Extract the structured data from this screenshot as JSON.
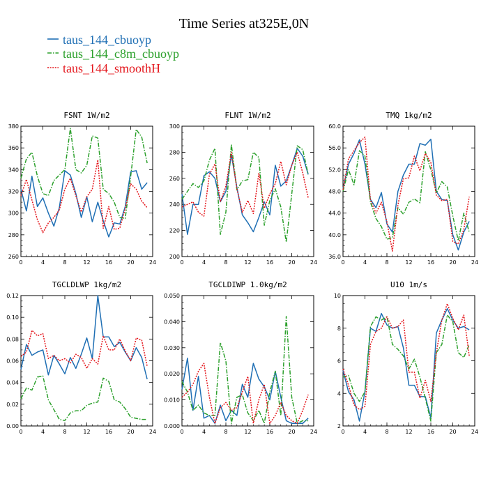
{
  "figure": {
    "title": "Time Series at325E,0N"
  },
  "legend": [
    {
      "label": "taus_144_cbuoyp",
      "color": "#1f6fb4",
      "dash": "solid"
    },
    {
      "label": "taus_144_c8m_cbuoyp",
      "color": "#2ca02c",
      "dash": "dashdot"
    },
    {
      "label": "taus_144_smoothH",
      "color": "#e4161c",
      "dash": "dotted"
    }
  ],
  "chart_data": [
    {
      "type": "line",
      "title": "FSNT   1W/m2",
      "xlim": [
        0,
        24
      ],
      "xticks": [
        "0",
        "4",
        "8",
        "12",
        "16",
        "20",
        "24"
      ],
      "ylim": [
        260,
        380
      ],
      "yticks": [
        "260",
        "280",
        "300",
        "320",
        "340",
        "360",
        "380"
      ],
      "x": [
        0,
        1,
        2,
        3,
        4,
        5,
        6,
        7,
        8,
        9,
        10,
        11,
        12,
        13,
        14,
        15,
        16,
        17,
        18,
        19,
        20,
        21,
        22,
        23
      ],
      "series": [
        {
          "name": "taus_144_cbuoyp",
          "values": [
            322,
            302,
            334,
            306,
            314,
            300,
            288,
            305,
            339,
            335,
            318,
            296,
            315,
            292,
            310,
            293,
            278,
            291,
            290,
            306,
            338,
            339,
            322,
            328
          ]
        },
        {
          "name": "taus_144_c8m_cbuoyp",
          "values": [
            332,
            350,
            356,
            334,
            318,
            316,
            330,
            335,
            340,
            378,
            340,
            337,
            344,
            371,
            369,
            322,
            318,
            310,
            296,
            295,
            334,
            377,
            370,
            346
          ]
        },
        {
          "name": "taus_144_smoothH",
          "values": [
            316,
            331,
            312,
            294,
            282,
            291,
            296,
            303,
            322,
            332,
            316,
            301,
            315,
            322,
            349,
            286,
            306,
            285,
            286,
            304,
            327,
            322,
            311,
            305
          ]
        }
      ]
    },
    {
      "type": "line",
      "title": "FLNT   1W/m2",
      "xlim": [
        0,
        24
      ],
      "xticks": [
        "0",
        "4",
        "8",
        "12",
        "16",
        "20",
        "24"
      ],
      "ylim": [
        200,
        300
      ],
      "yticks": [
        "200",
        "220",
        "240",
        "260",
        "280",
        "300"
      ],
      "x": [
        0,
        1,
        2,
        3,
        4,
        5,
        6,
        7,
        8,
        9,
        10,
        11,
        12,
        13,
        14,
        15,
        16,
        17,
        18,
        19,
        20,
        21,
        22,
        23
      ],
      "series": [
        {
          "name": "taus_144_cbuoyp",
          "values": [
            248,
            217,
            240,
            240,
            262,
            265,
            260,
            242,
            250,
            278,
            253,
            232,
            226,
            219,
            230,
            242,
            232,
            270,
            254,
            258,
            270,
            283,
            277,
            263
          ]
        },
        {
          "name": "taus_144_c8m_cbuoyp",
          "values": [
            244,
            250,
            256,
            253,
            258,
            274,
            283,
            217,
            234,
            286,
            251,
            258,
            259,
            280,
            276,
            224,
            243,
            252,
            238,
            211,
            248,
            285,
            282,
            263
          ]
        },
        {
          "name": "taus_144_smoothH",
          "values": [
            238,
            240,
            242,
            234,
            231,
            263,
            271,
            242,
            254,
            280,
            252,
            234,
            243,
            233,
            264,
            237,
            248,
            256,
            273,
            255,
            270,
            280,
            264,
            245
          ]
        }
      ]
    },
    {
      "type": "line",
      "title": "TMQ   1kg/m2",
      "xlim": [
        0,
        24
      ],
      "xticks": [
        "0",
        "4",
        "8",
        "12",
        "16",
        "20",
        "24"
      ],
      "ylim": [
        36,
        60
      ],
      "yticks": [
        "36.0",
        "40.0",
        "44.0",
        "48.0",
        "52.0",
        "56.0",
        "60.0"
      ],
      "x": [
        0,
        1,
        2,
        3,
        4,
        5,
        6,
        7,
        8,
        9,
        10,
        11,
        12,
        13,
        14,
        15,
        16,
        17,
        18,
        19,
        20,
        21,
        22,
        23
      ],
      "series": [
        {
          "name": "taus_144_cbuoyp",
          "values": [
            48.5,
            53,
            55,
            57.5,
            53,
            46.5,
            45,
            47.8,
            42,
            40.5,
            48,
            51,
            53,
            53,
            56.8,
            56.5,
            57.6,
            48,
            46.5,
            46.3,
            40,
            37.2,
            40.5,
            42.5
          ]
        },
        {
          "name": "taus_144_c8m_cbuoyp",
          "values": [
            48,
            52,
            49.2,
            55.5,
            54.5,
            46,
            43,
            41.5,
            39.2,
            39.5,
            45,
            43.8,
            46,
            46.6,
            45.9,
            55.3,
            52,
            47.7,
            49.8,
            48.8,
            43.5,
            38.9,
            44,
            40.5
          ]
        },
        {
          "name": "taus_144_smoothH",
          "values": [
            48.3,
            54,
            55.5,
            57,
            58,
            46.4,
            44,
            46,
            42.4,
            37,
            45.5,
            50.3,
            50.5,
            54.5,
            51.8,
            55,
            53.3,
            47.3,
            46.3,
            46.5,
            38.8,
            38.3,
            41,
            47
          ]
        }
      ]
    },
    {
      "type": "line",
      "title": "TGCLDLWP   1kg/m2",
      "xlim": [
        0,
        24
      ],
      "xticks": [
        "0",
        "4",
        "8",
        "12",
        "16",
        "20",
        "24"
      ],
      "ylim": [
        0,
        0.12
      ],
      "yticks": [
        "0.00",
        "0.02",
        "0.04",
        "0.06",
        "0.08",
        "0.10",
        "0.12"
      ],
      "x": [
        0,
        1,
        2,
        3,
        4,
        5,
        6,
        7,
        8,
        9,
        10,
        11,
        12,
        13,
        14,
        15,
        16,
        17,
        18,
        19,
        20,
        21,
        22,
        23
      ],
      "series": [
        {
          "name": "taus_144_cbuoyp",
          "values": [
            0.052,
            0.075,
            0.065,
            0.068,
            0.07,
            0.047,
            0.065,
            0.057,
            0.048,
            0.063,
            0.053,
            0.066,
            0.081,
            0.062,
            0.12,
            0.082,
            0.082,
            0.073,
            0.077,
            0.068,
            0.06,
            0.072,
            0.063,
            0.043
          ]
        },
        {
          "name": "taus_144_c8m_cbuoyp",
          "values": [
            0.025,
            0.035,
            0.033,
            0.045,
            0.046,
            0.024,
            0.015,
            0.006,
            0.005,
            0.012,
            0.014,
            0.014,
            0.019,
            0.021,
            0.022,
            0.044,
            0.041,
            0.024,
            0.022,
            0.016,
            0.008,
            0.007,
            0.006,
            0.006
          ]
        },
        {
          "name": "taus_144_smoothH",
          "values": [
            0.064,
            0.068,
            0.088,
            0.083,
            0.085,
            0.062,
            0.065,
            0.06,
            0.062,
            0.058,
            0.066,
            0.063,
            0.053,
            0.062,
            0.057,
            0.083,
            0.07,
            0.07,
            0.08,
            0.069,
            0.06,
            0.081,
            0.079,
            0.055
          ]
        }
      ]
    },
    {
      "type": "line",
      "title": "TGCLDIWP   1.0kg/m2",
      "xlim": [
        0,
        24
      ],
      "xticks": [
        "0",
        "4",
        "8",
        "12",
        "16",
        "20",
        "24"
      ],
      "ylim": [
        0,
        0.05
      ],
      "yticks": [
        "0.000",
        "0.010",
        "0.020",
        "0.030",
        "0.040",
        "0.050"
      ],
      "x": [
        0,
        1,
        2,
        3,
        4,
        5,
        6,
        7,
        8,
        9,
        10,
        11,
        12,
        13,
        14,
        15,
        16,
        17,
        18,
        19,
        20,
        21,
        22,
        23
      ],
      "series": [
        {
          "name": "taus_144_cbuoyp",
          "values": [
            0.014,
            0.026,
            0.006,
            0.019,
            0.003,
            0.004,
            0.001,
            0.008,
            0.002,
            0.006,
            0.004,
            0.016,
            0.011,
            0.024,
            0.018,
            0.015,
            0.01,
            0.021,
            0.011,
            0.002,
            0.001,
            0.001,
            0.001,
            0.003
          ]
        },
        {
          "name": "taus_144_c8m_cbuoyp",
          "values": [
            0.017,
            0.013,
            0.006,
            0.008,
            0.005,
            0.004,
            0.004,
            0.032,
            0.025,
            0.001,
            0.011,
            0.012,
            0.005,
            0.002,
            0.006,
            0.001,
            0.013,
            0.021,
            0.004,
            0.042,
            0.011,
            0.001,
            0.002,
            0.002
          ]
        },
        {
          "name": "taus_144_smoothH",
          "values": [
            0.011,
            0.013,
            0.016,
            0.021,
            0.024,
            0.011,
            0.001,
            0.007,
            0.009,
            0.006,
            0.007,
            0.013,
            0.019,
            0.001,
            0.01,
            0.016,
            0.001,
            0.004,
            0.009,
            0.004,
            0.002,
            0.001,
            0.006,
            0.012
          ]
        }
      ]
    },
    {
      "type": "line",
      "title": "U10   1m/s",
      "xlim": [
        0,
        24
      ],
      "xticks": [
        "0",
        "4",
        "8",
        "12",
        "16",
        "20",
        "24"
      ],
      "ylim": [
        2,
        10
      ],
      "yticks": [
        "2",
        "4",
        "6",
        "8",
        "10"
      ],
      "x": [
        0,
        1,
        2,
        3,
        4,
        5,
        6,
        7,
        8,
        9,
        10,
        11,
        12,
        13,
        14,
        15,
        16,
        17,
        18,
        19,
        20,
        21,
        22,
        23
      ],
      "series": [
        {
          "name": "taus_144_cbuoyp",
          "values": [
            5.4,
            4.1,
            3.6,
            2.3,
            4.1,
            8.0,
            7.8,
            8.9,
            8.2,
            8.0,
            8.1,
            6.8,
            4.5,
            4.5,
            3.8,
            3.8,
            2.5,
            7.7,
            8.5,
            9.2,
            8.5,
            8.0,
            8.1,
            7.9
          ]
        },
        {
          "name": "taus_144_c8m_cbuoyp",
          "values": [
            5.0,
            5.1,
            4.0,
            3.5,
            4.1,
            8.1,
            8.7,
            8.5,
            8.7,
            7.0,
            6.7,
            6.3,
            5.5,
            6.1,
            5.0,
            3.7,
            2.3,
            6.5,
            7.0,
            8.8,
            8.4,
            6.5,
            6.2,
            7.0
          ]
        },
        {
          "name": "taus_144_smoothH",
          "values": [
            5.5,
            4.5,
            3.3,
            3.0,
            3.2,
            7.0,
            7.8,
            8.0,
            8.7,
            8.0,
            8.1,
            8.5,
            5.3,
            5.3,
            3.7,
            4.8,
            3.5,
            6.5,
            8.5,
            9.5,
            8.6,
            7.9,
            8.8,
            6.3
          ]
        }
      ]
    }
  ]
}
